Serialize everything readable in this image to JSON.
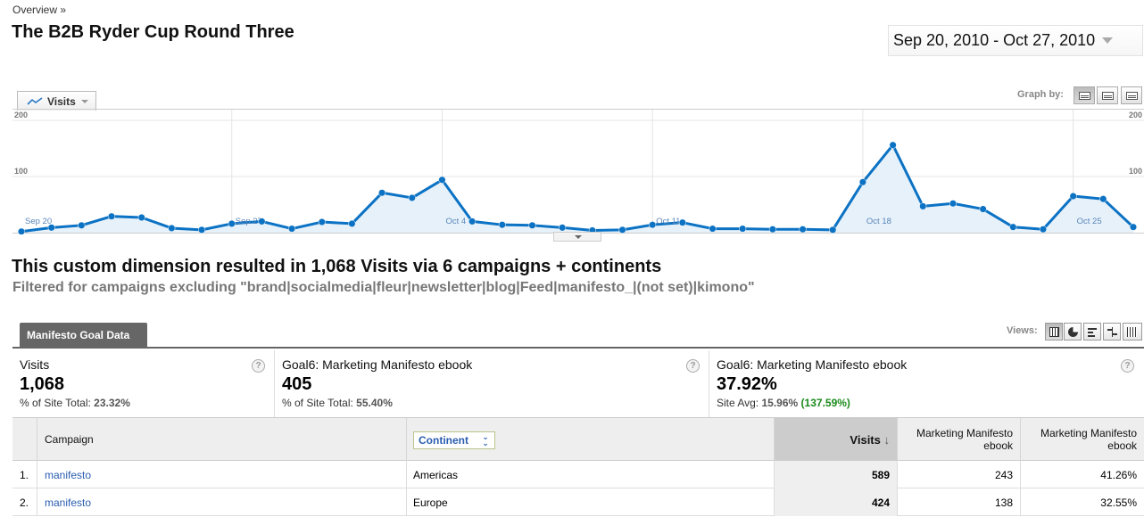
{
  "breadcrumb": "Overview »",
  "title": "The B2B Ryder Cup Round Three",
  "date_range": "Sep 20, 2010 - Oct 27, 2010",
  "metric_selector": "Visits",
  "graph_by_label": "Graph by:",
  "chart_data": {
    "type": "line",
    "title": "",
    "xlabel": "",
    "ylabel": "",
    "ylim": [
      0,
      200
    ],
    "y_ticks": [
      100,
      200
    ],
    "x_tick_labels": [
      "Sep 20",
      "Sep 27",
      "Oct 4",
      "Oct 11",
      "Oct 18",
      "Oct 25"
    ],
    "x": [
      "Sep 20",
      "Sep 21",
      "Sep 22",
      "Sep 23",
      "Sep 24",
      "Sep 25",
      "Sep 26",
      "Sep 27",
      "Sep 28",
      "Sep 29",
      "Sep 30",
      "Oct 1",
      "Oct 2",
      "Oct 3",
      "Oct 4",
      "Oct 5",
      "Oct 6",
      "Oct 7",
      "Oct 8",
      "Oct 9",
      "Oct 10",
      "Oct 11",
      "Oct 12",
      "Oct 13",
      "Oct 14",
      "Oct 15",
      "Oct 16",
      "Oct 17",
      "Oct 18",
      "Oct 19",
      "Oct 20",
      "Oct 21",
      "Oct 22",
      "Oct 23",
      "Oct 24",
      "Oct 25",
      "Oct 26",
      "Oct 27"
    ],
    "series": [
      {
        "values": [
          2,
          9,
          13,
          29,
          27,
          8,
          5,
          16,
          20,
          7,
          19,
          16,
          71,
          62,
          94,
          20,
          14,
          13,
          9,
          4,
          5,
          14,
          18,
          7,
          7,
          6,
          6,
          5,
          90,
          156,
          47,
          52,
          42,
          10,
          6,
          65,
          60,
          10
        ]
      }
    ],
    "color": "#0b72c4",
    "fill": "#e6f1fa",
    "grid": true
  },
  "summary": "This custom dimension resulted in 1,068 Visits via 6 campaigns + continents",
  "filter_text": "Filtered for campaigns excluding \"brand|socialmedia|fleur|newsletter|blog|Feed|manifesto_|(not set)|kimono\"",
  "data_tab": "Manifesto Goal Data",
  "views_label": "Views:",
  "scorecards": [
    {
      "label": "Visits",
      "value": "1,068",
      "sub_label": "% of Site Total:",
      "sub_value": "23.32%"
    },
    {
      "label": "Goal6: Marketing Manifesto ebook",
      "value": "405",
      "sub_label": "% of Site Total:",
      "sub_value": "55.40%"
    },
    {
      "label": "Goal6: Marketing Manifesto ebook",
      "value": "37.92%",
      "sub_label": "Site Avg:",
      "sub_value": "15.96%",
      "sub_extra": "(137.59%)"
    }
  ],
  "help_glyph": "?",
  "table": {
    "headers": {
      "campaign": "Campaign",
      "continent": "Continent",
      "visits": "Visits",
      "visits_sort": "↓",
      "goal_completions": "Marketing Manifesto ebook",
      "goal_rate": "Marketing Manifesto ebook"
    },
    "rows": [
      {
        "index": "1.",
        "campaign": "manifesto",
        "continent": "Americas",
        "visits": "589",
        "goal_completions": "243",
        "goal_rate": "41.26%"
      },
      {
        "index": "2.",
        "campaign": "manifesto",
        "continent": "Europe",
        "visits": "424",
        "goal_completions": "138",
        "goal_rate": "32.55%"
      }
    ]
  }
}
